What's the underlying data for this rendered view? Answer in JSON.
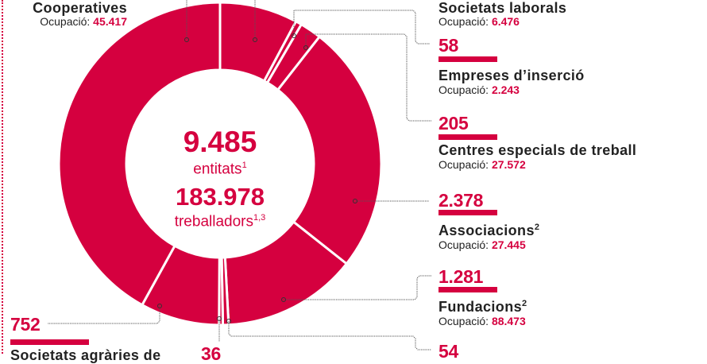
{
  "accent_color": "#d5003f",
  "center": {
    "entities_value": "9.485",
    "entities_label": "entitats",
    "entities_sup": "1",
    "workers_value": "183.978",
    "workers_label": "treballadors",
    "workers_sup": "1,3"
  },
  "occupation_label": "Ocupació:",
  "labels": {
    "cooperatives": {
      "title": "Cooperatives",
      "occupation": "45.417"
    },
    "societats_laborals": {
      "title": "Societats laborals",
      "occupation": "6.476"
    },
    "empreses_insercio": {
      "count": "58",
      "title": "Empreses d’inserció",
      "occupation": "2.243"
    },
    "centres_especials": {
      "count": "205",
      "title": "Centres especials de treball",
      "occupation": "27.572"
    },
    "associacions": {
      "count": "2.378",
      "title": "Associacions",
      "sup": "2",
      "occupation": "27.445"
    },
    "fundacions": {
      "count": "1.281",
      "title": "Fundacions",
      "sup": "2",
      "occupation": "88.473"
    },
    "seg54": {
      "count": "54"
    },
    "seg36": {
      "count": "36"
    },
    "societats_agraries": {
      "count": "752",
      "title": "Societats agràries de"
    }
  },
  "chart_data": {
    "type": "pie",
    "donut": true,
    "start": "top",
    "direction": "clockwise",
    "total_entities": 9485,
    "total_workers": 183978,
    "slices": [
      {
        "name": "Societats laborals",
        "value": 740,
        "occupation": 6476
      },
      {
        "name": "Empreses d’inserció",
        "value": 58,
        "occupation": 2243
      },
      {
        "name": "Centres especials de treball",
        "value": 205,
        "occupation": 27572
      },
      {
        "name": "Associacions",
        "value": 2378,
        "occupation": 27445
      },
      {
        "name": "Fundacions",
        "value": 1281,
        "occupation": 88473
      },
      {
        "name": "",
        "value": 54
      },
      {
        "name": "",
        "value": 36
      },
      {
        "name": "Societats agràries de",
        "value": 752
      },
      {
        "name": "Cooperatives",
        "value": 3981,
        "occupation": 45417
      }
    ]
  }
}
